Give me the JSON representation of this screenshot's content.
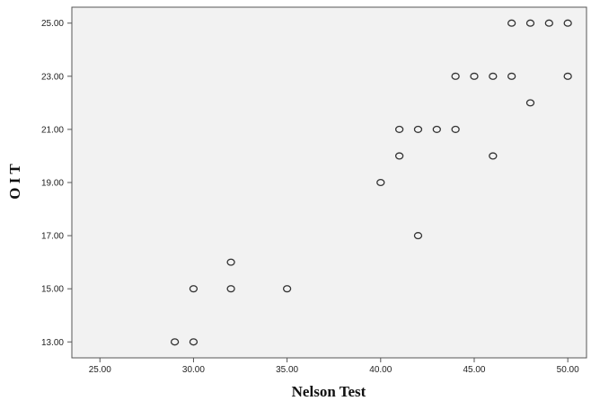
{
  "chart_data": {
    "type": "scatter",
    "xlabel": "Nelson Test",
    "ylabel": "O I T",
    "xlim": [
      23.5,
      51
    ],
    "ylim": [
      12.4,
      25.6
    ],
    "xticks": [
      25,
      30,
      35,
      40,
      45,
      50
    ],
    "yticks": [
      13,
      15,
      17,
      19,
      21,
      23,
      25
    ],
    "xtick_labels": [
      "25.00",
      "30.00",
      "35.00",
      "40.00",
      "45.00",
      "50.00"
    ],
    "ytick_labels": [
      "13.00",
      "15.00",
      "17.00",
      "19.00",
      "21.00",
      "23.00",
      "25.00"
    ],
    "grid": false,
    "plot_background": "#f2f2f2",
    "marker_color": "#333333",
    "points": [
      {
        "x": 29,
        "y": 13
      },
      {
        "x": 30,
        "y": 13
      },
      {
        "x": 30,
        "y": 15
      },
      {
        "x": 32,
        "y": 15
      },
      {
        "x": 32,
        "y": 16
      },
      {
        "x": 35,
        "y": 15
      },
      {
        "x": 40,
        "y": 19
      },
      {
        "x": 41,
        "y": 20
      },
      {
        "x": 41,
        "y": 21
      },
      {
        "x": 42,
        "y": 21
      },
      {
        "x": 42,
        "y": 17
      },
      {
        "x": 43,
        "y": 21
      },
      {
        "x": 44,
        "y": 21
      },
      {
        "x": 44,
        "y": 23
      },
      {
        "x": 45,
        "y": 23
      },
      {
        "x": 46,
        "y": 23
      },
      {
        "x": 46,
        "y": 20
      },
      {
        "x": 47,
        "y": 23
      },
      {
        "x": 47,
        "y": 25
      },
      {
        "x": 48,
        "y": 25
      },
      {
        "x": 48,
        "y": 22
      },
      {
        "x": 49,
        "y": 25
      },
      {
        "x": 50,
        "y": 25
      },
      {
        "x": 50,
        "y": 23
      }
    ]
  }
}
